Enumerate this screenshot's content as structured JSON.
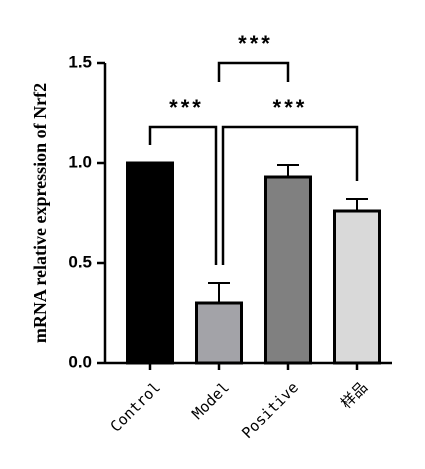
{
  "chart_data": {
    "type": "bar",
    "ylabel": "mRNA relative expression of  Nrf2",
    "categories": [
      "Control",
      "Model",
      "Positive",
      "样品"
    ],
    "values": [
      1.0,
      0.3,
      0.93,
      0.76
    ],
    "errors": [
      null,
      0.1,
      0.06,
      0.06
    ],
    "colors": [
      "#000000",
      "#a3a3a8",
      "#808080",
      "#d9d9d9"
    ],
    "ylim": [
      0,
      1.5
    ],
    "yticks": [
      {
        "value": 0,
        "label": "0.0"
      },
      {
        "value": 0.5,
        "label": "0.5"
      },
      {
        "value": 1,
        "label": "1.0"
      },
      {
        "value": 1.5,
        "label": "1.5"
      }
    ],
    "annotations": [
      {
        "label": "***",
        "between": [
          0,
          1
        ]
      },
      {
        "label": "***",
        "between": [
          1,
          2
        ]
      },
      {
        "label": "***",
        "between": [
          1,
          3
        ]
      }
    ]
  }
}
